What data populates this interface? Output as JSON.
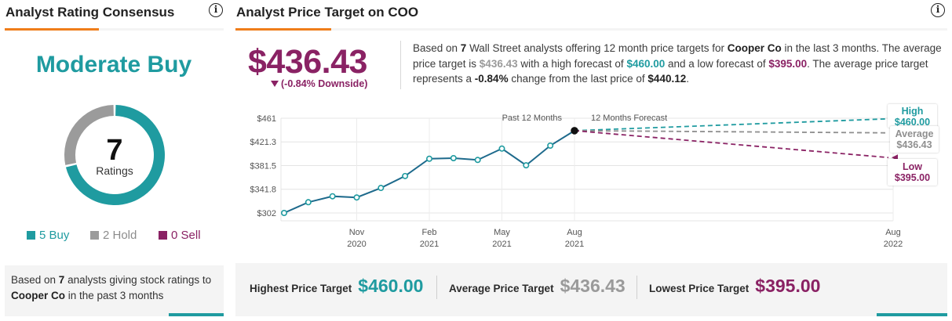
{
  "left": {
    "title": "Analyst Rating Consensus",
    "consensus": "Moderate Buy",
    "count": "7",
    "count_label": "Ratings",
    "legend": [
      {
        "label": "5 Buy",
        "color": "#1f9ba0",
        "count": 5
      },
      {
        "label": "2 Hold",
        "color": "#9b9b9b",
        "count": 2
      },
      {
        "label": "0 Sell",
        "color": "#8a2264",
        "count": 0
      }
    ],
    "footer": {
      "p1": "Based on ",
      "n": "7",
      "p2": " analysts giving stock ratings to ",
      "company": "Cooper Co",
      "p3": " in the past 3 months"
    }
  },
  "right": {
    "title": "Analyst Price Target on COO",
    "price": "$436.43",
    "downside": "(-0.84% Downside)",
    "desc": {
      "s1": "Based on ",
      "n": "7",
      "s2": " Wall Street analysts offering 12 month price targets for ",
      "company": "Cooper Co",
      "s3": " in the last 3 months. The average price target is ",
      "avg": "$436.43",
      "s4": " with a high forecast of ",
      "high": "$460.00",
      "s5": " and a low forecast of ",
      "low": "$395.00",
      "s6": ". The average price target represents a ",
      "change": "-0.84%",
      "s7": " change from the last price of ",
      "last": "$440.12",
      "s8": "."
    },
    "bottom": {
      "high_label": "Highest Price Target",
      "high_value": "$460.00",
      "avg_label": "Average Price Target",
      "avg_value": "$436.43",
      "low_label": "Lowest Price Target",
      "low_value": "$395.00"
    }
  },
  "chart_data": {
    "type": "line",
    "yticks": [
      "$461",
      "$421.3",
      "$381.5",
      "$341.8",
      "$302"
    ],
    "ytick_values": [
      461,
      421.3,
      381.5,
      341.8,
      302
    ],
    "ylim": [
      302,
      461
    ],
    "past_label": "Past 12 Months",
    "forecast_label": "12 Months Forecast",
    "xticks": [
      {
        "month": "Nov",
        "year": "2020",
        "t": 3
      },
      {
        "month": "Feb",
        "year": "2021",
        "t": 6
      },
      {
        "month": "May",
        "year": "2021",
        "t": 9
      },
      {
        "month": "Aug",
        "year": "2021",
        "t": 12
      },
      {
        "month": "Aug",
        "year": "2022",
        "t": 25.3
      }
    ],
    "history": [
      {
        "t": 0,
        "v": 302
      },
      {
        "t": 1,
        "v": 320
      },
      {
        "t": 2,
        "v": 330
      },
      {
        "t": 3,
        "v": 328
      },
      {
        "t": 4,
        "v": 344
      },
      {
        "t": 5,
        "v": 364
      },
      {
        "t": 6,
        "v": 393
      },
      {
        "t": 7,
        "v": 394
      },
      {
        "t": 8,
        "v": 391
      },
      {
        "t": 9,
        "v": 410
      },
      {
        "t": 10,
        "v": 382
      },
      {
        "t": 11,
        "v": 415
      },
      {
        "t": 12,
        "v": 440.12
      }
    ],
    "forecast": [
      {
        "name": "High",
        "value": "$460.00",
        "v": 460.0,
        "color": "#1f9ba0"
      },
      {
        "name": "Average",
        "value": "$436.43",
        "v": 436.43,
        "color": "#8f8f8f"
      },
      {
        "name": "Low",
        "value": "$395.00",
        "v": 395.0,
        "color": "#8a2264"
      }
    ]
  }
}
